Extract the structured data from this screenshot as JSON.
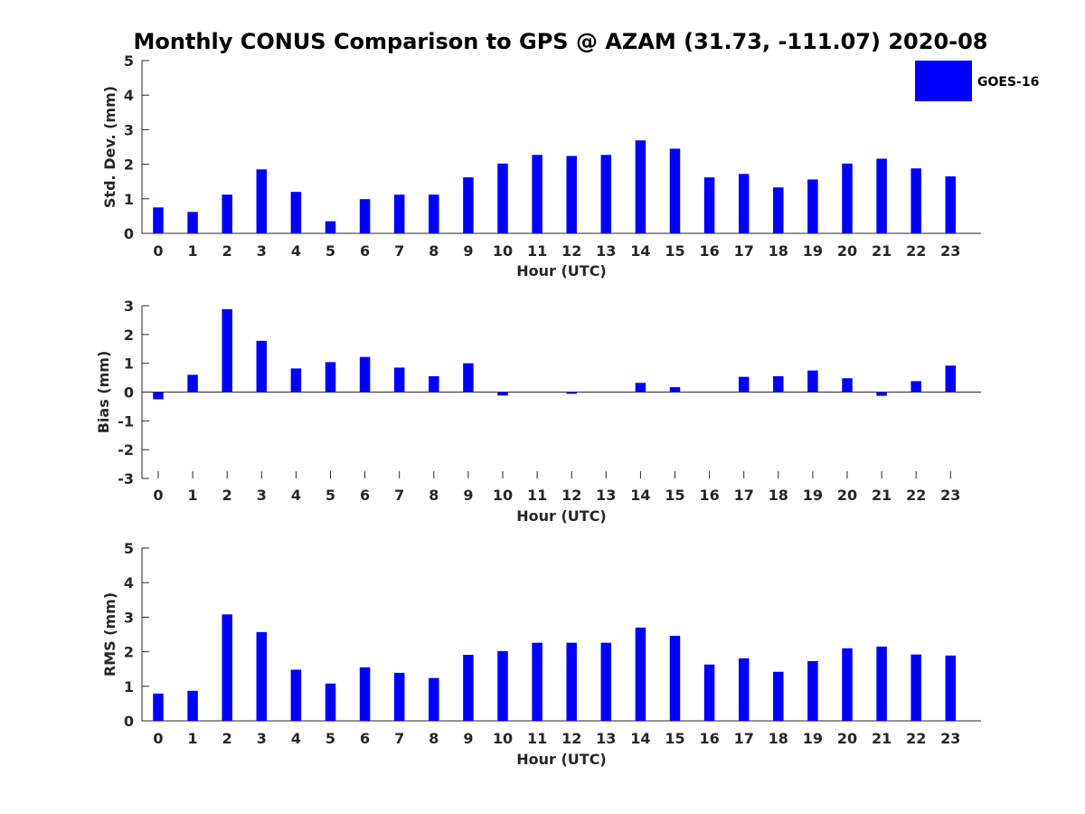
{
  "chart_data": {
    "title": "Monthly CONUS Comparison to GPS @ AZAM (31.73, -111.07) 2020-08",
    "legend": {
      "entries": [
        "GOES-16"
      ],
      "placement": "top-right",
      "color": "#0000ff"
    },
    "bar_color": "#0000ff",
    "panels": [
      {
        "type": "bar",
        "xlabel": "Hour (UTC)",
        "ylabel": "Std. Dev. (mm)",
        "ylim": [
          0,
          5
        ],
        "yticks": [
          0,
          1,
          2,
          3,
          4,
          5
        ],
        "categories": [
          "0",
          "1",
          "2",
          "3",
          "4",
          "5",
          "6",
          "7",
          "8",
          "9",
          "10",
          "11",
          "12",
          "13",
          "14",
          "15",
          "16",
          "17",
          "18",
          "19",
          "20",
          "21",
          "22",
          "23"
        ],
        "series": [
          {
            "name": "GOES-16",
            "values": [
              0.75,
              0.62,
              1.12,
              1.85,
              1.2,
              0.35,
              0.99,
              1.12,
              1.12,
              1.62,
              2.02,
              2.27,
              2.24,
              2.27,
              2.69,
              2.45,
              1.62,
              1.72,
              1.33,
              1.56,
              2.02,
              2.16,
              1.88,
              1.65
            ]
          }
        ]
      },
      {
        "type": "bar",
        "xlabel": "Hour (UTC)",
        "ylabel": "Bias (mm)",
        "ylim": [
          -3,
          3
        ],
        "yticks": [
          -3,
          -2,
          -1,
          0,
          1,
          2,
          3
        ],
        "categories": [
          "0",
          "1",
          "2",
          "3",
          "4",
          "5",
          "6",
          "7",
          "8",
          "9",
          "10",
          "11",
          "12",
          "13",
          "14",
          "15",
          "16",
          "17",
          "18",
          "19",
          "20",
          "21",
          "22",
          "23"
        ],
        "series": [
          {
            "name": "GOES-16",
            "values": [
              -0.25,
              0.6,
              2.88,
              1.78,
              0.82,
              1.04,
              1.22,
              0.85,
              0.55,
              1.0,
              -0.12,
              0.0,
              -0.06,
              0.0,
              0.32,
              0.17,
              0.0,
              0.53,
              0.55,
              0.75,
              0.48,
              -0.13,
              0.38,
              0.92
            ]
          }
        ]
      },
      {
        "type": "bar",
        "xlabel": "Hour (UTC)",
        "ylabel": "RMS (mm)",
        "ylim": [
          0,
          5
        ],
        "yticks": [
          0,
          1,
          2,
          3,
          4,
          5
        ],
        "categories": [
          "0",
          "1",
          "2",
          "3",
          "4",
          "5",
          "6",
          "7",
          "8",
          "9",
          "10",
          "11",
          "12",
          "13",
          "14",
          "15",
          "16",
          "17",
          "18",
          "19",
          "20",
          "21",
          "22",
          "23"
        ],
        "series": [
          {
            "name": "GOES-16",
            "values": [
              0.79,
              0.87,
              3.08,
              2.57,
              1.48,
              1.08,
              1.55,
              1.39,
              1.24,
              1.91,
              2.02,
              2.26,
              2.26,
              2.26,
              2.7,
              2.46,
              1.63,
              1.81,
              1.42,
              1.73,
              2.1,
              2.15,
              1.92,
              1.89
            ]
          }
        ]
      }
    ]
  }
}
